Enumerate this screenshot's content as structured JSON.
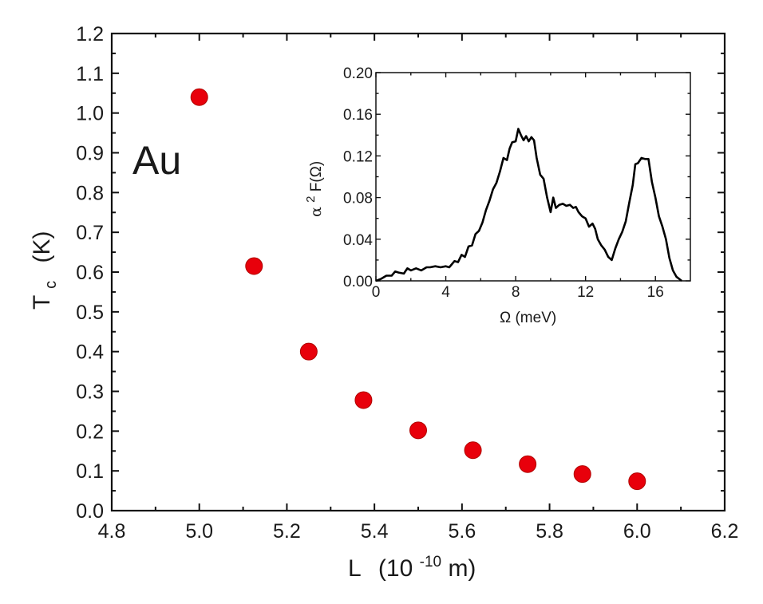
{
  "chart_data": [
    {
      "type": "scatter",
      "name": "main",
      "annotation": "Au",
      "xlabel": "L",
      "xlabel_unit_base": "(10",
      "xlabel_unit_exp": "-10",
      "xlabel_unit_tail": " m)",
      "ylabel": "T",
      "ylabel_sub": "c",
      "ylabel_unit": "(K)",
      "xlim": [
        4.8,
        6.2
      ],
      "ylim": [
        0.0,
        1.2
      ],
      "xticks": [
        "4.8",
        "5.0",
        "5.2",
        "5.4",
        "5.6",
        "5.8",
        "6.0",
        "6.2"
      ],
      "yticks": [
        "0.0",
        "0.1",
        "0.2",
        "0.3",
        "0.4",
        "0.5",
        "0.6",
        "0.7",
        "0.8",
        "0.9",
        "1.0",
        "1.1",
        "1.2"
      ],
      "marker_color": "#e8000b",
      "x": [
        5.0,
        5.125,
        5.25,
        5.375,
        5.5,
        5.625,
        5.75,
        5.875,
        6.0
      ],
      "y": [
        1.04,
        0.615,
        0.4,
        0.278,
        0.202,
        0.152,
        0.117,
        0.092,
        0.074
      ],
      "grid": false
    },
    {
      "type": "line",
      "name": "inset",
      "xlabel": "Ω  (meV)",
      "ylabel_alpha": "α",
      "ylabel_exp": "2",
      "ylabel_rest": "F(Ω)",
      "xlim": [
        0,
        18
      ],
      "ylim": [
        0.0,
        0.2
      ],
      "xticks": [
        "0",
        "4",
        "8",
        "12",
        "16"
      ],
      "yticks": [
        "0.00",
        "0.04",
        "0.08",
        "0.12",
        "0.16",
        "0.20"
      ],
      "line_color": "#000000",
      "x": [
        0,
        0.3,
        0.6,
        0.9,
        1.1,
        1.3,
        1.6,
        1.8,
        2.0,
        2.3,
        2.6,
        2.9,
        3.1,
        3.4,
        3.7,
        4.0,
        4.2,
        4.5,
        4.7,
        4.9,
        5.1,
        5.3,
        5.5,
        5.7,
        5.9,
        6.1,
        6.3,
        6.5,
        6.7,
        6.9,
        7.1,
        7.3,
        7.5,
        7.65,
        7.8,
        8.0,
        8.15,
        8.3,
        8.45,
        8.6,
        8.75,
        8.9,
        9.05,
        9.2,
        9.4,
        9.6,
        9.8,
        10.0,
        10.15,
        10.3,
        10.5,
        10.7,
        10.9,
        11.1,
        11.3,
        11.45,
        11.6,
        11.8,
        12.0,
        12.2,
        12.4,
        12.55,
        12.7,
        12.9,
        13.1,
        13.3,
        13.5,
        13.7,
        13.9,
        14.1,
        14.3,
        14.5,
        14.7,
        14.85,
        15.0,
        15.2,
        15.4,
        15.6,
        15.8,
        16.0,
        16.2,
        16.4,
        16.6,
        16.8,
        17.0,
        17.2,
        17.5
      ],
      "y": [
        0.0,
        0.002,
        0.005,
        0.005,
        0.009,
        0.008,
        0.007,
        0.012,
        0.01,
        0.012,
        0.01,
        0.013,
        0.013,
        0.014,
        0.013,
        0.014,
        0.013,
        0.019,
        0.018,
        0.025,
        0.023,
        0.033,
        0.034,
        0.045,
        0.048,
        0.056,
        0.068,
        0.077,
        0.088,
        0.094,
        0.105,
        0.118,
        0.116,
        0.127,
        0.133,
        0.134,
        0.146,
        0.14,
        0.135,
        0.139,
        0.134,
        0.138,
        0.135,
        0.118,
        0.102,
        0.098,
        0.08,
        0.066,
        0.08,
        0.07,
        0.073,
        0.074,
        0.072,
        0.073,
        0.07,
        0.071,
        0.066,
        0.062,
        0.06,
        0.052,
        0.055,
        0.05,
        0.04,
        0.034,
        0.03,
        0.023,
        0.02,
        0.031,
        0.04,
        0.047,
        0.057,
        0.075,
        0.092,
        0.112,
        0.113,
        0.118,
        0.117,
        0.117,
        0.095,
        0.08,
        0.062,
        0.052,
        0.04,
        0.022,
        0.01,
        0.004,
        0.0
      ],
      "grid": false
    }
  ]
}
